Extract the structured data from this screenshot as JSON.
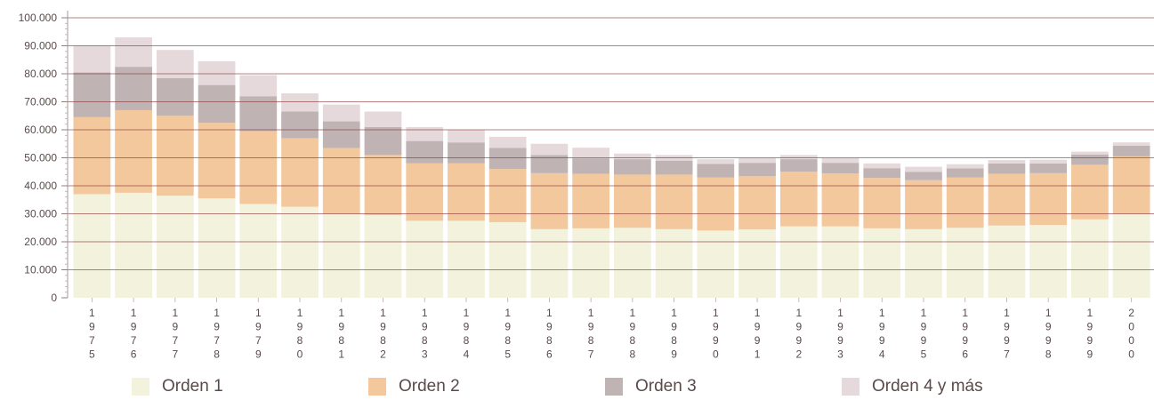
{
  "chart_data": {
    "type": "bar",
    "stacked": true,
    "categories": [
      "1975",
      "1976",
      "1977",
      "1978",
      "1979",
      "1980",
      "1981",
      "1982",
      "1983",
      "1984",
      "1985",
      "1986",
      "1987",
      "1988",
      "1989",
      "1990",
      "1991",
      "1992",
      "1993",
      "1994",
      "1995",
      "1996",
      "1997",
      "1998",
      "1999",
      "2000"
    ],
    "series": [
      {
        "name": "Orden 1",
        "color": "#f3f2dc",
        "values": [
          37000,
          37500,
          36500,
          35500,
          33500,
          32500,
          30000,
          29500,
          27500,
          27500,
          27000,
          24500,
          24800,
          25000,
          24500,
          24000,
          24400,
          25500,
          25500,
          24800,
          24500,
          25000,
          25800,
          26000,
          28000,
          30000
        ]
      },
      {
        "name": "Orden 2",
        "color": "#f2c89c",
        "values": [
          27500,
          29500,
          28500,
          27000,
          26000,
          24500,
          23500,
          21500,
          20500,
          20500,
          19000,
          20000,
          19500,
          19000,
          19500,
          19000,
          19000,
          19500,
          18900,
          18000,
          17500,
          18000,
          18500,
          18500,
          19500,
          20500
        ]
      },
      {
        "name": "Orden 3",
        "color": "#bfb3b4",
        "values": [
          16000,
          15500,
          13500,
          13500,
          12500,
          9500,
          9500,
          10000,
          8000,
          7500,
          7500,
          6500,
          5500,
          5500,
          5000,
          4800,
          4800,
          4500,
          3800,
          3500,
          3000,
          3200,
          3700,
          3500,
          3700,
          3800
        ]
      },
      {
        "name": "Orden 4 y más",
        "color": "#e6d9dc",
        "values": [
          9500,
          10500,
          10000,
          8500,
          7500,
          6500,
          6000,
          5500,
          5000,
          4500,
          4000,
          4000,
          3800,
          2000,
          2000,
          1700,
          1700,
          1500,
          1700,
          1700,
          1800,
          1500,
          1200,
          1300,
          1000,
          1200
        ]
      }
    ],
    "y_ticks": [
      "0",
      "10.000",
      "20.000",
      "30.000",
      "40.000",
      "50.000",
      "60.000",
      "70.000",
      "80.000",
      "90.000",
      "100.000"
    ],
    "ylim": [
      0,
      100000
    ],
    "grid": true,
    "legend_placement": "bottom",
    "xlabel": "",
    "ylabel": "",
    "title": ""
  }
}
